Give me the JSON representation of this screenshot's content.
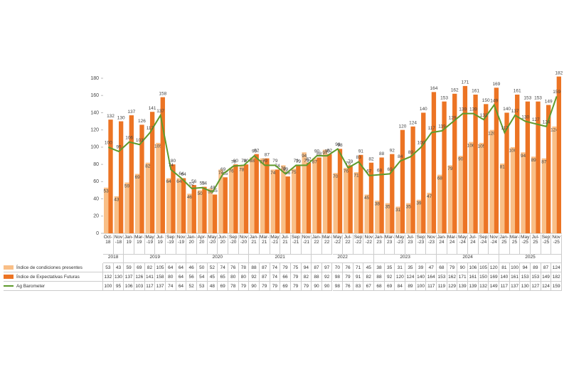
{
  "chart_data": {
    "type": "bar-line",
    "categories": [
      "Oct-18",
      "Nov-18",
      "Jan-19",
      "Mar-19",
      "May-19",
      "Jul-19",
      "Sep-19",
      "Nov-19",
      "Jan-20",
      "Apr-20",
      "May-20",
      "Jun-20",
      "Sep-20",
      "Nov-20",
      "Jan-21",
      "Mar-21",
      "May-21",
      "Jul-21",
      "Sep-21",
      "Nov-21",
      "Jan-22",
      "Mar-22",
      "May-22",
      "Jul-22",
      "Sep-22",
      "Nov-22",
      "Jan-23",
      "Mar-23",
      "May-23",
      "Jul-23",
      "Sep-23",
      "Nov-23",
      "Jan-24",
      "Mar-24",
      "May-24",
      "Jul-24",
      "Sep-24",
      "Nov-24",
      "Jan-25",
      "Mar-25",
      "May-25",
      "Jul-25",
      "Sep-25",
      "Nov-25"
    ],
    "years": [
      "2018",
      "2019",
      "2020",
      "2021",
      "2022",
      "2023",
      "2024",
      "2025"
    ],
    "series": [
      {
        "name": "Índice de condiciones presentes",
        "color": "#f9bf87",
        "kind": "bar",
        "values": [
          53,
          43,
          59,
          69,
          82,
          105,
          64,
          64,
          46,
          50,
          52,
          74,
          76,
          78,
          88,
          87,
          74,
          79,
          75,
          94,
          87,
          97,
          70,
          76,
          71,
          45,
          38,
          35,
          31,
          35,
          39,
          47,
          68,
          79,
          90,
          106,
          105,
          120,
          81,
          100,
          94,
          89,
          87,
          124
        ]
      },
      {
        "name": "Índice de Expectativas Futuras",
        "color": "#ec7424",
        "kind": "bar",
        "values": [
          132,
          130,
          137,
          126,
          141,
          158,
          80,
          64,
          56,
          54,
          45,
          65,
          80,
          80,
          92,
          87,
          74,
          66,
          79,
          82,
          88,
          92,
          98,
          79,
          91,
          82,
          88,
          92,
          120,
          124,
          140,
          164,
          153,
          162,
          171,
          161,
          150,
          169,
          140,
          161,
          153,
          153,
          149,
          182
        ]
      },
      {
        "name": "Ag Barometer",
        "color": "#5e9a2c",
        "kind": "line",
        "values": [
          100,
          95,
          106,
          103,
          117,
          137,
          74,
          64,
          52,
          53,
          48,
          69,
          78,
          79,
          90,
          79,
          79,
          69,
          79,
          79,
          90,
          90,
          98,
          76,
          83,
          67,
          68,
          69,
          84,
          89,
          100,
          117,
          119,
          129,
          139,
          139,
          132,
          149,
          117,
          137,
          130,
          127,
          124,
          159
        ]
      }
    ],
    "ylim": [
      0,
      180
    ],
    "yticks": [
      0,
      20,
      40,
      60,
      80,
      100,
      120,
      140,
      160,
      180
    ]
  }
}
